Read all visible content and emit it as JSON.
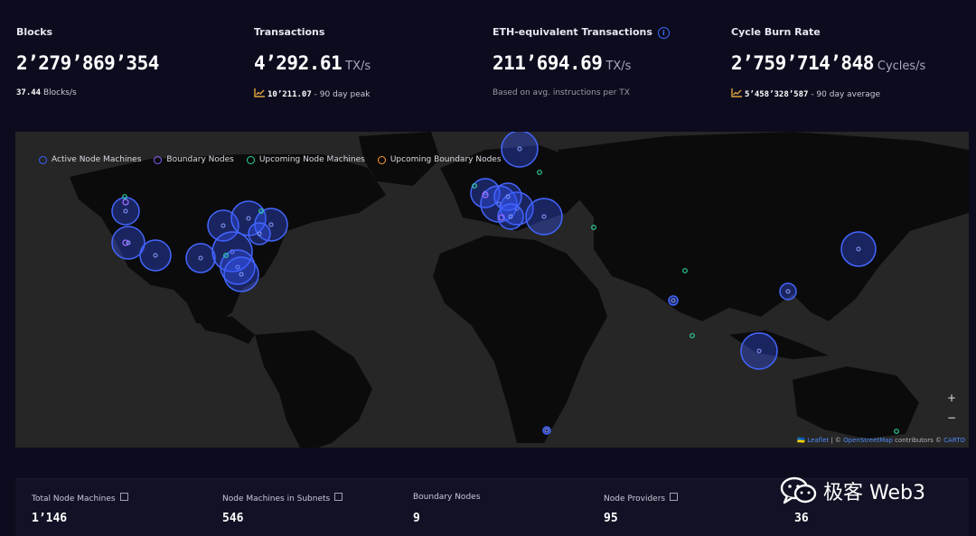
{
  "stats": [
    {
      "label": "Blocks",
      "value": "2’279’869’354",
      "unit": "",
      "sub_value": "37.44",
      "sub_text": "Blocks/s"
    },
    {
      "label": "Transactions",
      "value": "4’292.61",
      "unit": "TX/s",
      "sub_value": "10’211.07",
      "sub_text": "- 90 day peak"
    },
    {
      "label": "ETH-equivalent Transactions",
      "value": "211’694.69",
      "unit": "TX/s",
      "sub_value": "",
      "sub_text": "Based on avg. instructions per TX"
    },
    {
      "label": "Cycle Burn Rate",
      "value": "2’759’714’848",
      "unit": "Cycles/s",
      "sub_value": "5’458’328’587",
      "sub_text": "- 90 day average"
    }
  ],
  "map": {
    "legend": [
      {
        "label": "Active Node Machines",
        "color": "#3d5bff"
      },
      {
        "label": "Boundary Nodes",
        "color": "#8a5cff"
      },
      {
        "label": "Upcoming Node Machines",
        "color": "#2fd39a"
      },
      {
        "label": "Upcoming Boundary Nodes",
        "color": "#ff9a2f"
      }
    ],
    "zoom_in": "+",
    "zoom_out": "−",
    "attribution": {
      "flag": "🇺🇦",
      "leaflet": "Leaflet",
      "sep": " | © ",
      "osm": "OpenStreetMap",
      "contributors": " contributors © ",
      "carto": "CARTO"
    }
  },
  "bottom_stats": [
    {
      "label": "Total Node Machines",
      "value": "1’146",
      "external": true
    },
    {
      "label": "Node Machines in Subnets",
      "value": "546",
      "external": true
    },
    {
      "label": "Boundary Nodes",
      "value": "9",
      "external": false
    },
    {
      "label": "Node Providers",
      "value": "95",
      "external": true
    },
    {
      "label": "",
      "value": "36",
      "external": false
    }
  ],
  "watermark": {
    "text": "极客 Web3"
  }
}
